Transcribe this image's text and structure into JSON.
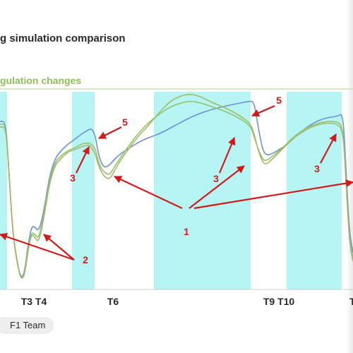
{
  "page": {
    "title": "g simulation comparison",
    "subtitle": "gulation changes",
    "credit": "F1 Team"
  },
  "colors": {
    "shading": "#9ff0f0",
    "series_blue": "#6f8fd8",
    "series_green": "#8cc56a",
    "series_olive": "#a6b86a",
    "annotation": "#d11a1a",
    "subtitle": "#8fbf5a"
  },
  "chart_data": {
    "type": "line",
    "x_tick_labels": [
      "T3 T4",
      "T6",
      "T9 T10",
      "T"
    ],
    "x_ticks_at": [
      48,
      160,
      395,
      495
    ],
    "xlim": [
      0,
      500
    ],
    "shaded_intervals": [
      [
        0,
        10
      ],
      [
        102,
        134
      ],
      [
        218,
        355
      ],
      [
        406,
        484
      ]
    ],
    "series": [
      {
        "color_key": "series_blue",
        "points": [
          [
            0,
            172
          ],
          [
            8,
            172
          ],
          [
            12,
            230
          ],
          [
            18,
            330
          ],
          [
            25,
            375
          ],
          [
            30,
            395
          ],
          [
            35,
            385
          ],
          [
            40,
            345
          ],
          [
            45,
            320
          ],
          [
            50,
            322
          ],
          [
            55,
            328
          ],
          [
            62,
            300
          ],
          [
            70,
            250
          ],
          [
            78,
            225
          ],
          [
            85,
            215
          ],
          [
            95,
            205
          ],
          [
            105,
            198
          ],
          [
            115,
            190
          ],
          [
            125,
            184
          ],
          [
            130,
            182
          ],
          [
            135,
            192
          ],
          [
            140,
            222
          ],
          [
            147,
            238
          ],
          [
            155,
            234
          ],
          [
            160,
            228
          ],
          [
            170,
            218
          ],
          [
            180,
            212
          ],
          [
            195,
            202
          ],
          [
            210,
            195
          ],
          [
            225,
            190
          ],
          [
            240,
            182
          ],
          [
            255,
            174
          ],
          [
            270,
            166
          ],
          [
            285,
            160
          ],
          [
            300,
            155
          ],
          [
            320,
            150
          ],
          [
            340,
            146
          ],
          [
            355,
            143
          ],
          [
            360,
            145
          ],
          [
            366,
            182
          ],
          [
            372,
            212
          ],
          [
            377,
            220
          ],
          [
            385,
            218
          ],
          [
            395,
            212
          ],
          [
            405,
            206
          ],
          [
            420,
            192
          ],
          [
            440,
            176
          ],
          [
            460,
            167
          ],
          [
            478,
            165
          ],
          [
            486,
            160
          ],
          [
            490,
            240
          ],
          [
            495,
            330
          ],
          [
            500,
            358
          ]
        ]
      },
      {
        "color_key": "series_green",
        "points": [
          [
            0,
            176
          ],
          [
            8,
            176
          ],
          [
            12,
            230
          ],
          [
            18,
            330
          ],
          [
            25,
            375
          ],
          [
            30,
            397
          ],
          [
            35,
            388
          ],
          [
            40,
            350
          ],
          [
            45,
            328
          ],
          [
            50,
            333
          ],
          [
            55,
            338
          ],
          [
            62,
            305
          ],
          [
            70,
            255
          ],
          [
            78,
            230
          ],
          [
            85,
            222
          ],
          [
            95,
            214
          ],
          [
            105,
            210
          ],
          [
            115,
            204
          ],
          [
            125,
            202
          ],
          [
            130,
            205
          ],
          [
            135,
            210
          ],
          [
            140,
            232
          ],
          [
            147,
            244
          ],
          [
            155,
            248
          ],
          [
            160,
            240
          ],
          [
            170,
            224
          ],
          [
            180,
            210
          ],
          [
            195,
            190
          ],
          [
            210,
            174
          ],
          [
            225,
            162
          ],
          [
            240,
            152
          ],
          [
            255,
            146
          ],
          [
            270,
            143
          ],
          [
            285,
            146
          ],
          [
            300,
            151
          ],
          [
            320,
            158
          ],
          [
            340,
            168
          ],
          [
            355,
            178
          ],
          [
            360,
            194
          ],
          [
            366,
            212
          ],
          [
            372,
            226
          ],
          [
            377,
            228
          ],
          [
            385,
            222
          ],
          [
            395,
            214
          ],
          [
            405,
            205
          ],
          [
            420,
            190
          ],
          [
            440,
            178
          ],
          [
            460,
            172
          ],
          [
            478,
            172
          ],
          [
            486,
            180
          ],
          [
            490,
            250
          ],
          [
            495,
            340
          ],
          [
            500,
            366
          ]
        ]
      },
      {
        "color_key": "series_olive",
        "points": [
          [
            0,
            180
          ],
          [
            8,
            180
          ],
          [
            12,
            232
          ],
          [
            18,
            332
          ],
          [
            25,
            377
          ],
          [
            30,
            396
          ],
          [
            35,
            390
          ],
          [
            40,
            353
          ],
          [
            45,
            330
          ],
          [
            50,
            338
          ],
          [
            55,
            343
          ],
          [
            62,
            310
          ],
          [
            70,
            260
          ],
          [
            78,
            234
          ],
          [
            85,
            226
          ],
          [
            95,
            216
          ],
          [
            105,
            212
          ],
          [
            115,
            208
          ],
          [
            125,
            205
          ],
          [
            130,
            209
          ],
          [
            135,
            218
          ],
          [
            140,
            236
          ],
          [
            147,
            250
          ],
          [
            155,
            254
          ],
          [
            160,
            246
          ],
          [
            170,
            228
          ],
          [
            180,
            214
          ],
          [
            195,
            194
          ],
          [
            210,
            178
          ],
          [
            225,
            160
          ],
          [
            240,
            144
          ],
          [
            255,
            136
          ],
          [
            270,
            133
          ],
          [
            285,
            137
          ],
          [
            300,
            145
          ],
          [
            320,
            153
          ],
          [
            340,
            164
          ],
          [
            355,
            175
          ],
          [
            360,
            190
          ],
          [
            366,
            214
          ],
          [
            372,
            230
          ],
          [
            377,
            233
          ],
          [
            385,
            226
          ],
          [
            395,
            216
          ],
          [
            405,
            206
          ],
          [
            420,
            192
          ],
          [
            440,
            180
          ],
          [
            460,
            174
          ],
          [
            478,
            175
          ],
          [
            486,
            186
          ],
          [
            490,
            256
          ],
          [
            495,
            345
          ],
          [
            500,
            370
          ]
        ]
      }
    ],
    "annotations": [
      {
        "label": "1",
        "pos": [
          264,
          333
        ],
        "arrows": [
          [
            [
              258,
              295
            ],
            [
              162,
              250
            ]
          ],
          [
            [
              268,
              295
            ],
            [
              346,
              235
            ]
          ],
          [
            [
              275,
              295
            ],
            [
              500,
              258
            ]
          ]
        ]
      },
      {
        "label": "2",
        "pos": [
          121,
          373
        ],
        "arrows": [
          [
            [
              105,
              368
            ],
            [
              62,
              332
            ]
          ],
          [
            [
              105,
              368
            ],
            [
              0,
              332
            ]
          ]
        ]
      },
      {
        "label": "3",
        "pos": [
          103,
          257
        ],
        "arrows": [
          [
            [
              108,
              245
            ],
            [
              126,
              208
            ]
          ]
        ]
      },
      {
        "label": "3",
        "pos": [
          306,
          258
        ],
        "arrows": [
          [
            [
              311,
              245
            ],
            [
              332,
              195
            ]
          ]
        ]
      },
      {
        "label": "3",
        "pos": [
          449,
          244
        ],
        "arrows": [
          [
            [
              454,
              231
            ],
            [
              476,
              190
            ]
          ]
        ]
      },
      {
        "label": "5",
        "pos": [
          177,
          178
        ],
        "arrows": [
          [
            [
              172,
              180
            ],
            [
              140,
              196
            ]
          ]
        ]
      },
      {
        "label": "5",
        "pos": [
          395,
          147
        ],
        "arrows": [
          [
            [
              389,
              150
            ],
            [
              357,
              164
            ]
          ]
        ]
      }
    ]
  }
}
